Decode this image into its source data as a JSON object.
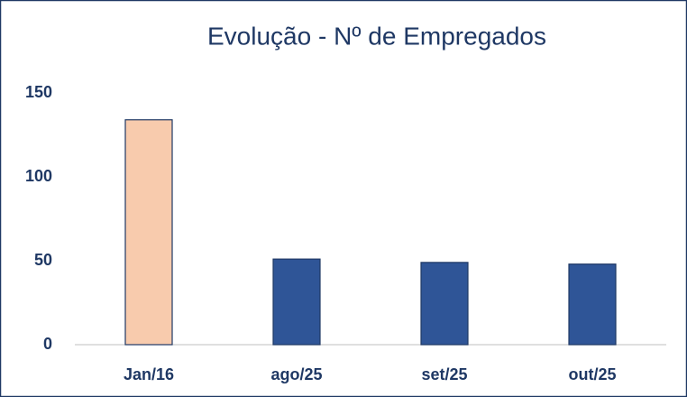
{
  "chart_data": {
    "type": "bar",
    "title": "Evolução - Nº de Empregados",
    "categories": [
      "Jan/16",
      "ago/25",
      "set/25",
      "out/25"
    ],
    "values": [
      134,
      51,
      49,
      48
    ],
    "colors": [
      "#f8cbad",
      "#2f5597",
      "#2f5597",
      "#2f5597"
    ],
    "ylim": [
      0,
      150
    ],
    "yticks": [
      0,
      50,
      100,
      150
    ],
    "grid": false
  }
}
